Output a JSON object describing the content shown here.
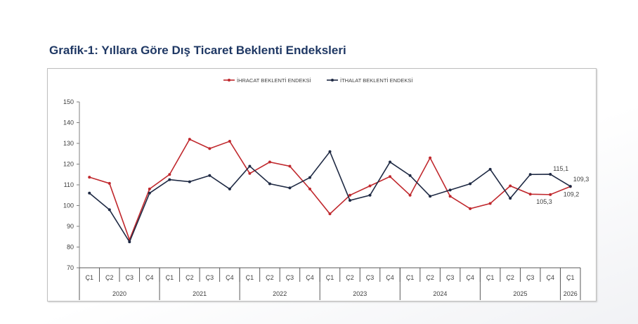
{
  "title": "Grafik-1: Yıllara Göre Dış Ticaret Beklenti Endeksleri",
  "chart_data": {
    "type": "line",
    "title": "Grafik-1: Yıllara Göre Dış Ticaret Beklenti Endeksleri",
    "categories": [
      "Ç1",
      "Ç2",
      "Ç3",
      "Ç4",
      "Ç1",
      "Ç2",
      "Ç3",
      "Ç4",
      "Ç1",
      "Ç2",
      "Ç3",
      "Ç4",
      "Ç1",
      "Ç2",
      "Ç3",
      "Ç4",
      "Ç1",
      "Ç2",
      "Ç3",
      "Ç4",
      "Ç1",
      "Ç2",
      "Ç3",
      "Ç4",
      "Ç1"
    ],
    "year_groups": [
      {
        "label": "2020",
        "count": 4
      },
      {
        "label": "2021",
        "count": 4
      },
      {
        "label": "2022",
        "count": 4
      },
      {
        "label": "2023",
        "count": 4
      },
      {
        "label": "2024",
        "count": 4
      },
      {
        "label": "2025",
        "count": 4
      },
      {
        "label": "2026",
        "count": 1
      }
    ],
    "ylim": [
      70,
      150
    ],
    "yticks": [
      70,
      80,
      90,
      100,
      110,
      120,
      130,
      140,
      150
    ],
    "legend_position": "top-center",
    "series": [
      {
        "name": "İHRACAT BEKLENTİ ENDEKSİ",
        "color": "#c0282d",
        "values": [
          113.7,
          110.7,
          83.5,
          108,
          115,
          132,
          127.5,
          131,
          115.5,
          121,
          119,
          108,
          96,
          105,
          109.5,
          114,
          105,
          123,
          104.5,
          98.5,
          101,
          109.5,
          105.5,
          105.3,
          109.2
        ]
      },
      {
        "name": "İTHALAT BEKLENTİ ENDEKSİ",
        "color": "#1f2a44",
        "values": [
          106,
          98,
          82.5,
          106,
          112.5,
          111.5,
          114.5,
          108,
          119,
          110.5,
          108.5,
          113.5,
          126,
          102.5,
          105,
          121,
          114.5,
          104.5,
          107.5,
          110.5,
          117.5,
          103.5,
          115,
          115.1,
          109.3
        ]
      }
    ],
    "data_labels": [
      {
        "series": 1,
        "index": 23,
        "text": "115,1"
      },
      {
        "series": 0,
        "index": 23,
        "text": "105,3"
      },
      {
        "series": 1,
        "index": 24,
        "text": "109,3"
      },
      {
        "series": 0,
        "index": 24,
        "text": "109,2"
      }
    ]
  }
}
